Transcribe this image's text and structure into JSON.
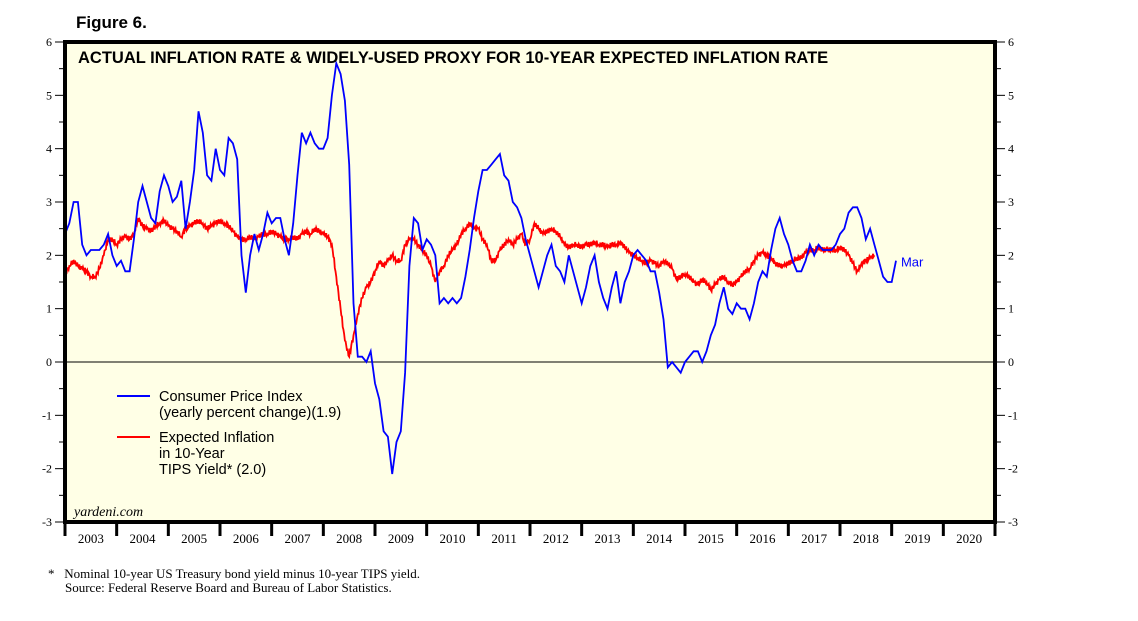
{
  "figure_label": "Figure 6.",
  "footnotes": {
    "marker": "*",
    "line1": "Nominal 10-year US Treasury bond yield minus 10-year TIPS yield.",
    "line2": "Source: Federal Reserve Board and Bureau of Labor Statistics."
  },
  "watermark": "yardeni.com",
  "colors": {
    "background": "#FFFFE6",
    "cpi": "#0000FF",
    "tips": "#FF0000",
    "frame": "#000000"
  },
  "chart_data": {
    "type": "line",
    "title": "ACTUAL INFLATION RATE & WIDELY-USED PROXY FOR 10-YEAR EXPECTED INFLATION RATE",
    "xlabel": "",
    "ylabel": "",
    "ylim": [
      -3,
      6
    ],
    "xlim": [
      2003,
      2021
    ],
    "y_ticks": [
      "6",
      "5",
      "4",
      "3",
      "2",
      "1",
      "0",
      "-1",
      "-2",
      "-3"
    ],
    "x_tick_labels": [
      "2003",
      "2004",
      "2005",
      "2006",
      "2007",
      "2008",
      "2009",
      "2010",
      "2011",
      "2012",
      "2013",
      "2014",
      "2015",
      "2016",
      "2017",
      "2018",
      "2019",
      "2020"
    ],
    "grid": false,
    "zero_line": true,
    "legend_position": "bottom-left",
    "end_annotation": "Mar",
    "series": [
      {
        "name": "Consumer Price Index (yearly percent change)(1.9)",
        "legend_lines": [
          "Consumer Price Index",
          "(yearly percent change)(1.9)"
        ],
        "frequency": "monthly",
        "start": 2003.0,
        "values": [
          2.4,
          2.6,
          3.0,
          3.0,
          2.2,
          2.0,
          2.1,
          2.1,
          2.1,
          2.2,
          2.4,
          2.0,
          1.8,
          1.9,
          1.7,
          1.7,
          2.3,
          3.0,
          3.3,
          3.0,
          2.7,
          2.6,
          3.2,
          3.5,
          3.3,
          3.0,
          3.1,
          3.4,
          2.5,
          3.0,
          3.6,
          4.7,
          4.3,
          3.5,
          3.4,
          4.0,
          3.6,
          3.5,
          4.2,
          4.1,
          3.8,
          2.0,
          1.3,
          2.0,
          2.4,
          2.1,
          2.4,
          2.8,
          2.6,
          2.7,
          2.7,
          2.3,
          2.0,
          2.6,
          3.5,
          4.3,
          4.1,
          4.3,
          4.1,
          4.0,
          4.0,
          4.2,
          5.0,
          5.6,
          5.4,
          4.9,
          3.7,
          1.1,
          0.1,
          0.1,
          0.0,
          0.2,
          -0.4,
          -0.7,
          -1.3,
          -1.4,
          -2.1,
          -1.5,
          -1.3,
          -0.2,
          1.8,
          2.7,
          2.6,
          2.1,
          2.3,
          2.2,
          2.0,
          1.1,
          1.2,
          1.1,
          1.2,
          1.1,
          1.2,
          1.6,
          2.1,
          2.7,
          3.2,
          3.6,
          3.6,
          3.7,
          3.8,
          3.9,
          3.5,
          3.4,
          3.0,
          2.9,
          2.7,
          2.3,
          2.0,
          1.7,
          1.4,
          1.7,
          2.0,
          2.2,
          1.8,
          1.7,
          1.5,
          2.0,
          1.7,
          1.4,
          1.1,
          1.4,
          1.8,
          2.0,
          1.5,
          1.2,
          1.0,
          1.4,
          1.7,
          1.1,
          1.5,
          1.7,
          2.0,
          2.1,
          2.0,
          1.9,
          1.7,
          1.7,
          1.3,
          0.8,
          -0.1,
          0.0,
          -0.1,
          -0.2,
          0.0,
          0.1,
          0.2,
          0.2,
          0.0,
          0.2,
          0.5,
          0.7,
          1.1,
          1.4,
          1.0,
          0.9,
          1.1,
          1.0,
          1.0,
          0.8,
          1.1,
          1.5,
          1.7,
          1.6,
          2.1,
          2.5,
          2.7,
          2.4,
          2.2,
          1.9,
          1.7,
          1.7,
          1.9,
          2.2,
          2.0,
          2.2,
          2.1,
          2.1,
          2.1,
          2.2,
          2.4,
          2.5,
          2.8,
          2.9,
          2.9,
          2.7,
          2.3,
          2.5,
          2.2,
          1.9,
          1.6,
          1.5,
          1.5,
          1.9
        ],
        "label": "(1.9)"
      },
      {
        "name": "Expected Inflation in 10-Year TIPS Yield* (2.0)",
        "legend_lines": [
          "Expected Inflation",
          "in 10-Year",
          "TIPS Yield* (2.0)"
        ],
        "frequency": "monthly",
        "start": 2003.0,
        "values": [
          1.65,
          1.8,
          1.9,
          1.8,
          1.75,
          1.7,
          1.6,
          1.6,
          1.75,
          2.0,
          2.3,
          2.3,
          2.2,
          2.3,
          2.35,
          2.3,
          2.4,
          2.7,
          2.55,
          2.5,
          2.45,
          2.55,
          2.6,
          2.65,
          2.55,
          2.5,
          2.45,
          2.35,
          2.5,
          2.55,
          2.6,
          2.65,
          2.6,
          2.5,
          2.55,
          2.6,
          2.65,
          2.6,
          2.55,
          2.45,
          2.35,
          2.3,
          2.3,
          2.35,
          2.3,
          2.35,
          2.4,
          2.4,
          2.45,
          2.4,
          2.35,
          2.3,
          2.3,
          2.35,
          2.3,
          2.4,
          2.45,
          2.4,
          2.5,
          2.45,
          2.4,
          2.35,
          2.2,
          1.6,
          1.0,
          0.4,
          0.1,
          0.5,
          0.9,
          1.2,
          1.4,
          1.5,
          1.7,
          1.9,
          1.8,
          1.9,
          2.0,
          1.9,
          1.9,
          2.2,
          2.3,
          2.3,
          2.2,
          2.1,
          2.0,
          1.8,
          1.5,
          1.7,
          1.8,
          2.0,
          2.1,
          2.2,
          2.4,
          2.5,
          2.6,
          2.5,
          2.5,
          2.3,
          2.2,
          1.9,
          1.9,
          2.1,
          2.2,
          2.3,
          2.2,
          2.3,
          2.4,
          2.2,
          2.3,
          2.6,
          2.5,
          2.4,
          2.45,
          2.5,
          2.45,
          2.35,
          2.2,
          2.15,
          2.2,
          2.2,
          2.15,
          2.2,
          2.2,
          2.25,
          2.2,
          2.2,
          2.15,
          2.2,
          2.2,
          2.25,
          2.15,
          2.05,
          2.0,
          1.95,
          1.9,
          1.85,
          1.9,
          1.85,
          1.8,
          1.9,
          1.85,
          1.75,
          1.55,
          1.6,
          1.65,
          1.6,
          1.5,
          1.45,
          1.55,
          1.5,
          1.35,
          1.45,
          1.55,
          1.6,
          1.5,
          1.45,
          1.5,
          1.6,
          1.7,
          1.75,
          1.9,
          2.0,
          2.05,
          2.0,
          1.95,
          1.85,
          1.8,
          1.8,
          1.85,
          1.9,
          1.95,
          1.95,
          2.05,
          2.1,
          2.1,
          2.15,
          2.1,
          2.1,
          2.1,
          2.1,
          2.15,
          2.1,
          2.0,
          1.85,
          1.7,
          1.85,
          1.9,
          1.95,
          2.0
        ],
        "label": "(2.0)"
      }
    ]
  }
}
